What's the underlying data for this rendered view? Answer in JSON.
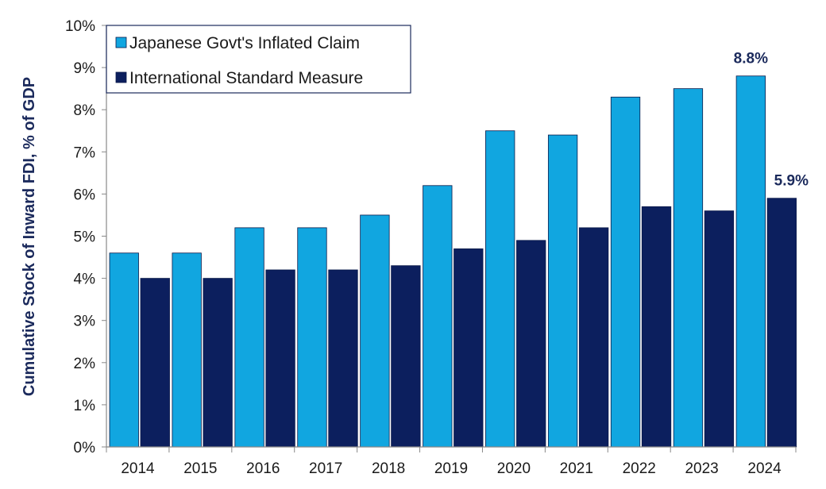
{
  "chart_data": {
    "type": "bar",
    "title": "",
    "xlabel": "",
    "ylabel": "Cumulative Stock of Inward FDI, % of GDP",
    "ylim": [
      0,
      10
    ],
    "yticks": [
      0,
      1,
      2,
      3,
      4,
      5,
      6,
      7,
      8,
      9,
      10
    ],
    "ytick_suffix": "%",
    "grid": false,
    "legend_position": "top-left",
    "categories": [
      "2014",
      "2015",
      "2016",
      "2017",
      "2018",
      "2019",
      "2020",
      "2021",
      "2022",
      "2023",
      "2024"
    ],
    "series": [
      {
        "name": "Japanese Govt's Inflated Claim",
        "color": "#11a6e0",
        "values": [
          4.6,
          4.6,
          5.2,
          5.2,
          5.5,
          6.2,
          7.5,
          7.4,
          8.3,
          8.5,
          8.8
        ]
      },
      {
        "name": "International Standard Measure",
        "color": "#0c1f5e",
        "values": [
          4.0,
          4.0,
          4.2,
          4.2,
          4.3,
          4.7,
          4.9,
          5.2,
          5.7,
          5.6,
          5.9
        ]
      }
    ],
    "annotations": [
      {
        "text": "8.8%",
        "series": 0,
        "category": "2024"
      },
      {
        "text": "5.9%",
        "series": 1,
        "category": "2024"
      }
    ]
  }
}
